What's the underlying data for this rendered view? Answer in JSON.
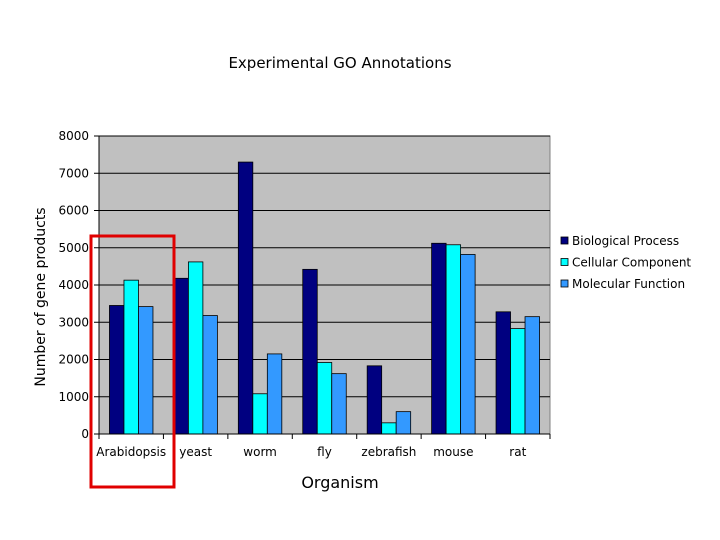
{
  "chart_data": {
    "type": "bar",
    "title": "Experimental GO Annotations",
    "xlabel": "Organism",
    "ylabel": "Number of gene products",
    "ylim": [
      0,
      8000
    ],
    "yticks": [
      "0",
      "1000",
      "2000",
      "3000",
      "4000",
      "5000",
      "6000",
      "7000",
      "8000"
    ],
    "grid": true,
    "legend_position": "right",
    "categories": [
      "Arabidopsis",
      "yeast",
      "worm",
      "fly",
      "zebrafish",
      "mouse",
      "rat"
    ],
    "series": [
      {
        "name": "Biological Process",
        "color": "#000080",
        "values": [
          3450,
          4180,
          7300,
          4420,
          1830,
          5120,
          3280
        ]
      },
      {
        "name": "Cellular Component",
        "color": "#00ffff",
        "values": [
          4130,
          4620,
          1080,
          1920,
          300,
          5080,
          2830
        ]
      },
      {
        "name": "Molecular Function",
        "color": "#3399ff",
        "values": [
          3420,
          3180,
          2150,
          1620,
          600,
          4820,
          3150
        ]
      }
    ],
    "plot_background": "#c0c0c0",
    "highlight_color": "#e00000"
  }
}
